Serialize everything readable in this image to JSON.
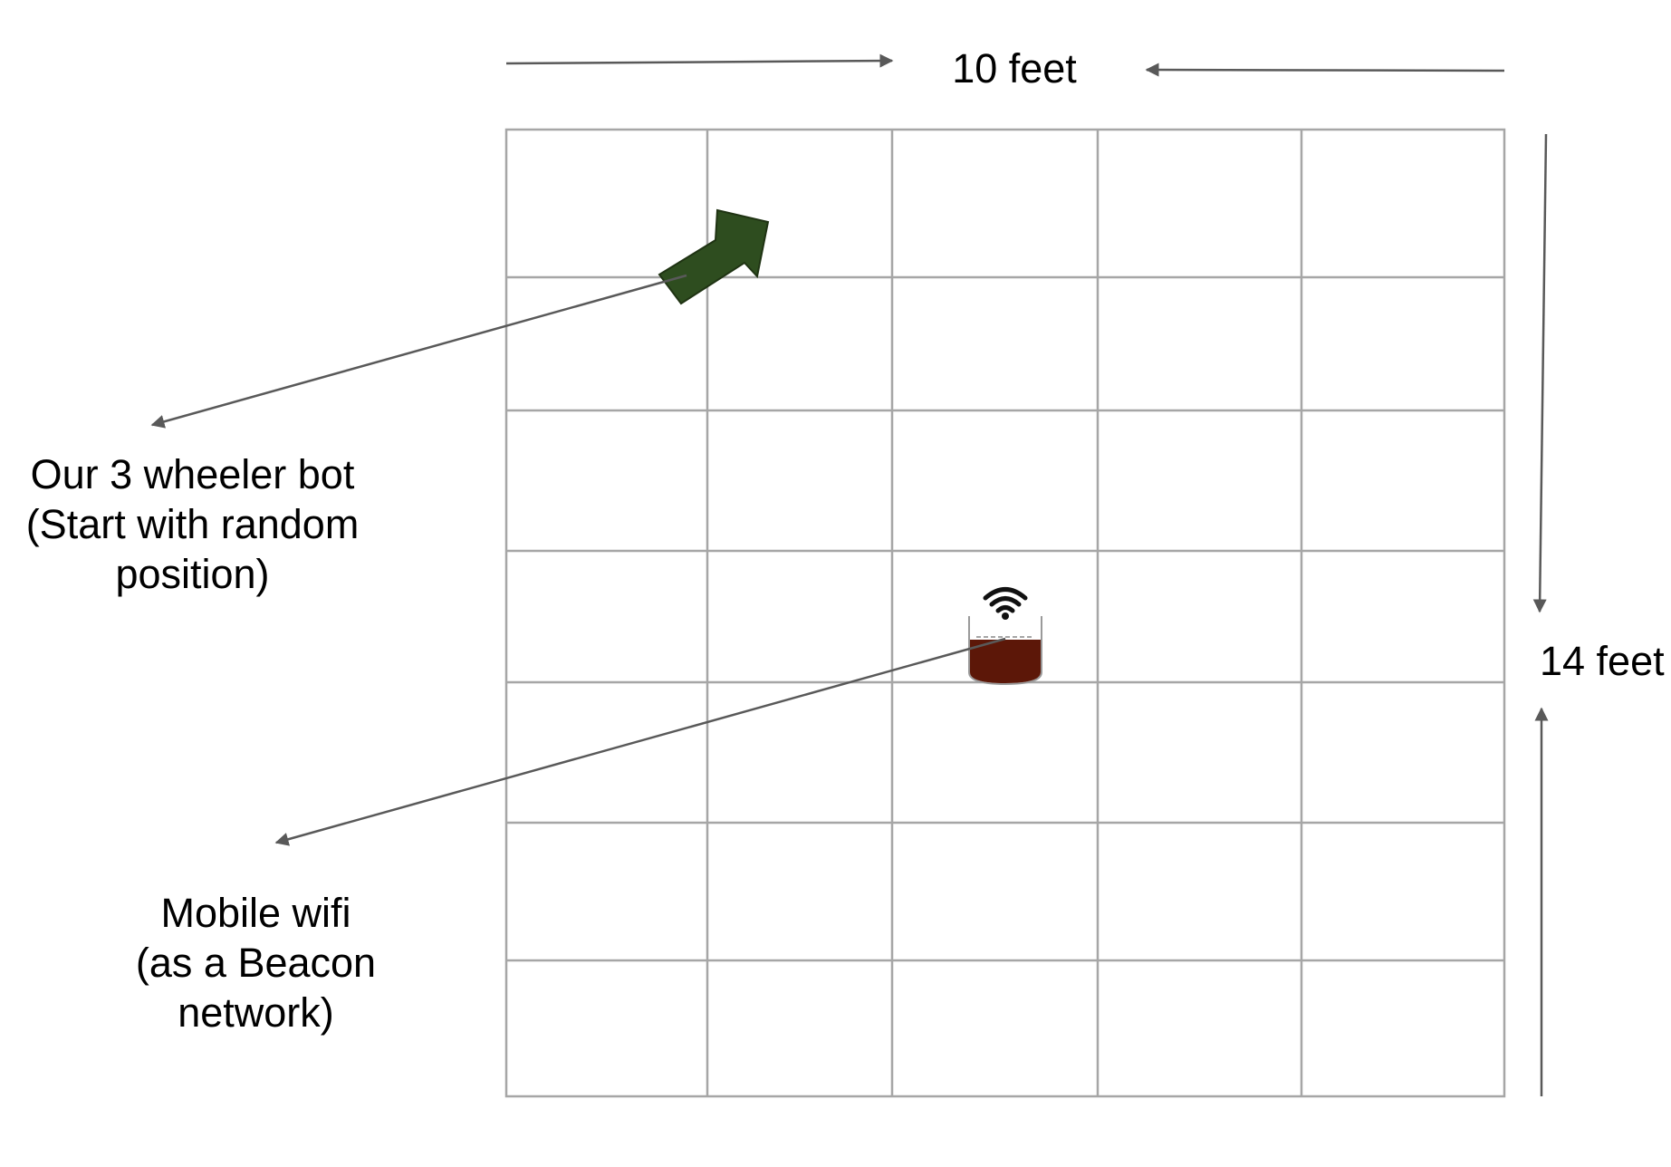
{
  "diagram": {
    "grid": {
      "columns": 5,
      "rows": 7
    },
    "dimensions": {
      "width_label": "10 feet",
      "height_label": "14 feet"
    },
    "labels": {
      "bot": [
        "Our 3 wheeler bot",
        "(Start with random",
        "position)"
      ],
      "wifi": [
        "Mobile wifi",
        "(as a Beacon",
        "network)"
      ]
    },
    "colors": {
      "grid_line": "#a6a6a6",
      "arrow_line": "#595959",
      "bot_arrow_fill": "#2e4d1f",
      "wifi_device_body": "#5c1708",
      "text": "#000000"
    },
    "icons": {
      "bot": "bot-direction-arrow-icon",
      "beacon": "wifi-beacon-icon"
    }
  }
}
